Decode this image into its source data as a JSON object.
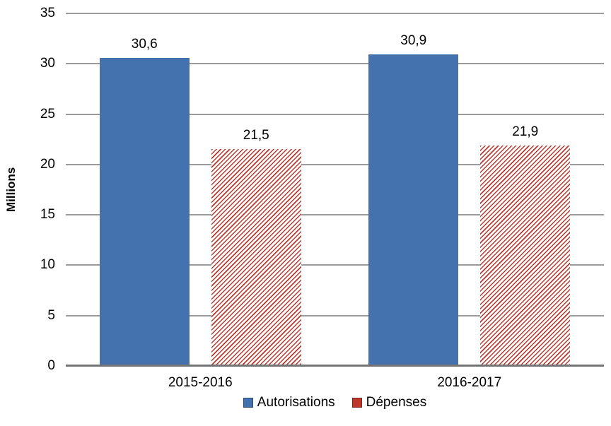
{
  "chart_data": {
    "type": "bar",
    "categories": [
      "2015-2016",
      "2016-2017"
    ],
    "series": [
      {
        "name": "Autorisations",
        "values": [
          30.6,
          30.9
        ],
        "value_labels": [
          "30,6",
          "30,9"
        ],
        "color": "#4372AE",
        "fill": "solid"
      },
      {
        "name": "Dépenses",
        "values": [
          21.5,
          21.9
        ],
        "value_labels": [
          "21,5",
          "21,9"
        ],
        "color": "#BE372D",
        "fill": "diagonal-hatch",
        "hatch_background": "#ffffff"
      }
    ],
    "ylabel": "Millions",
    "ylim": [
      0,
      35
    ],
    "yticks": [
      0,
      5,
      10,
      15,
      20,
      25,
      30,
      35
    ],
    "grid": true,
    "legend_position": "bottom",
    "gridline_color": "#9b9b9b",
    "axis_line_color": "#757575"
  }
}
